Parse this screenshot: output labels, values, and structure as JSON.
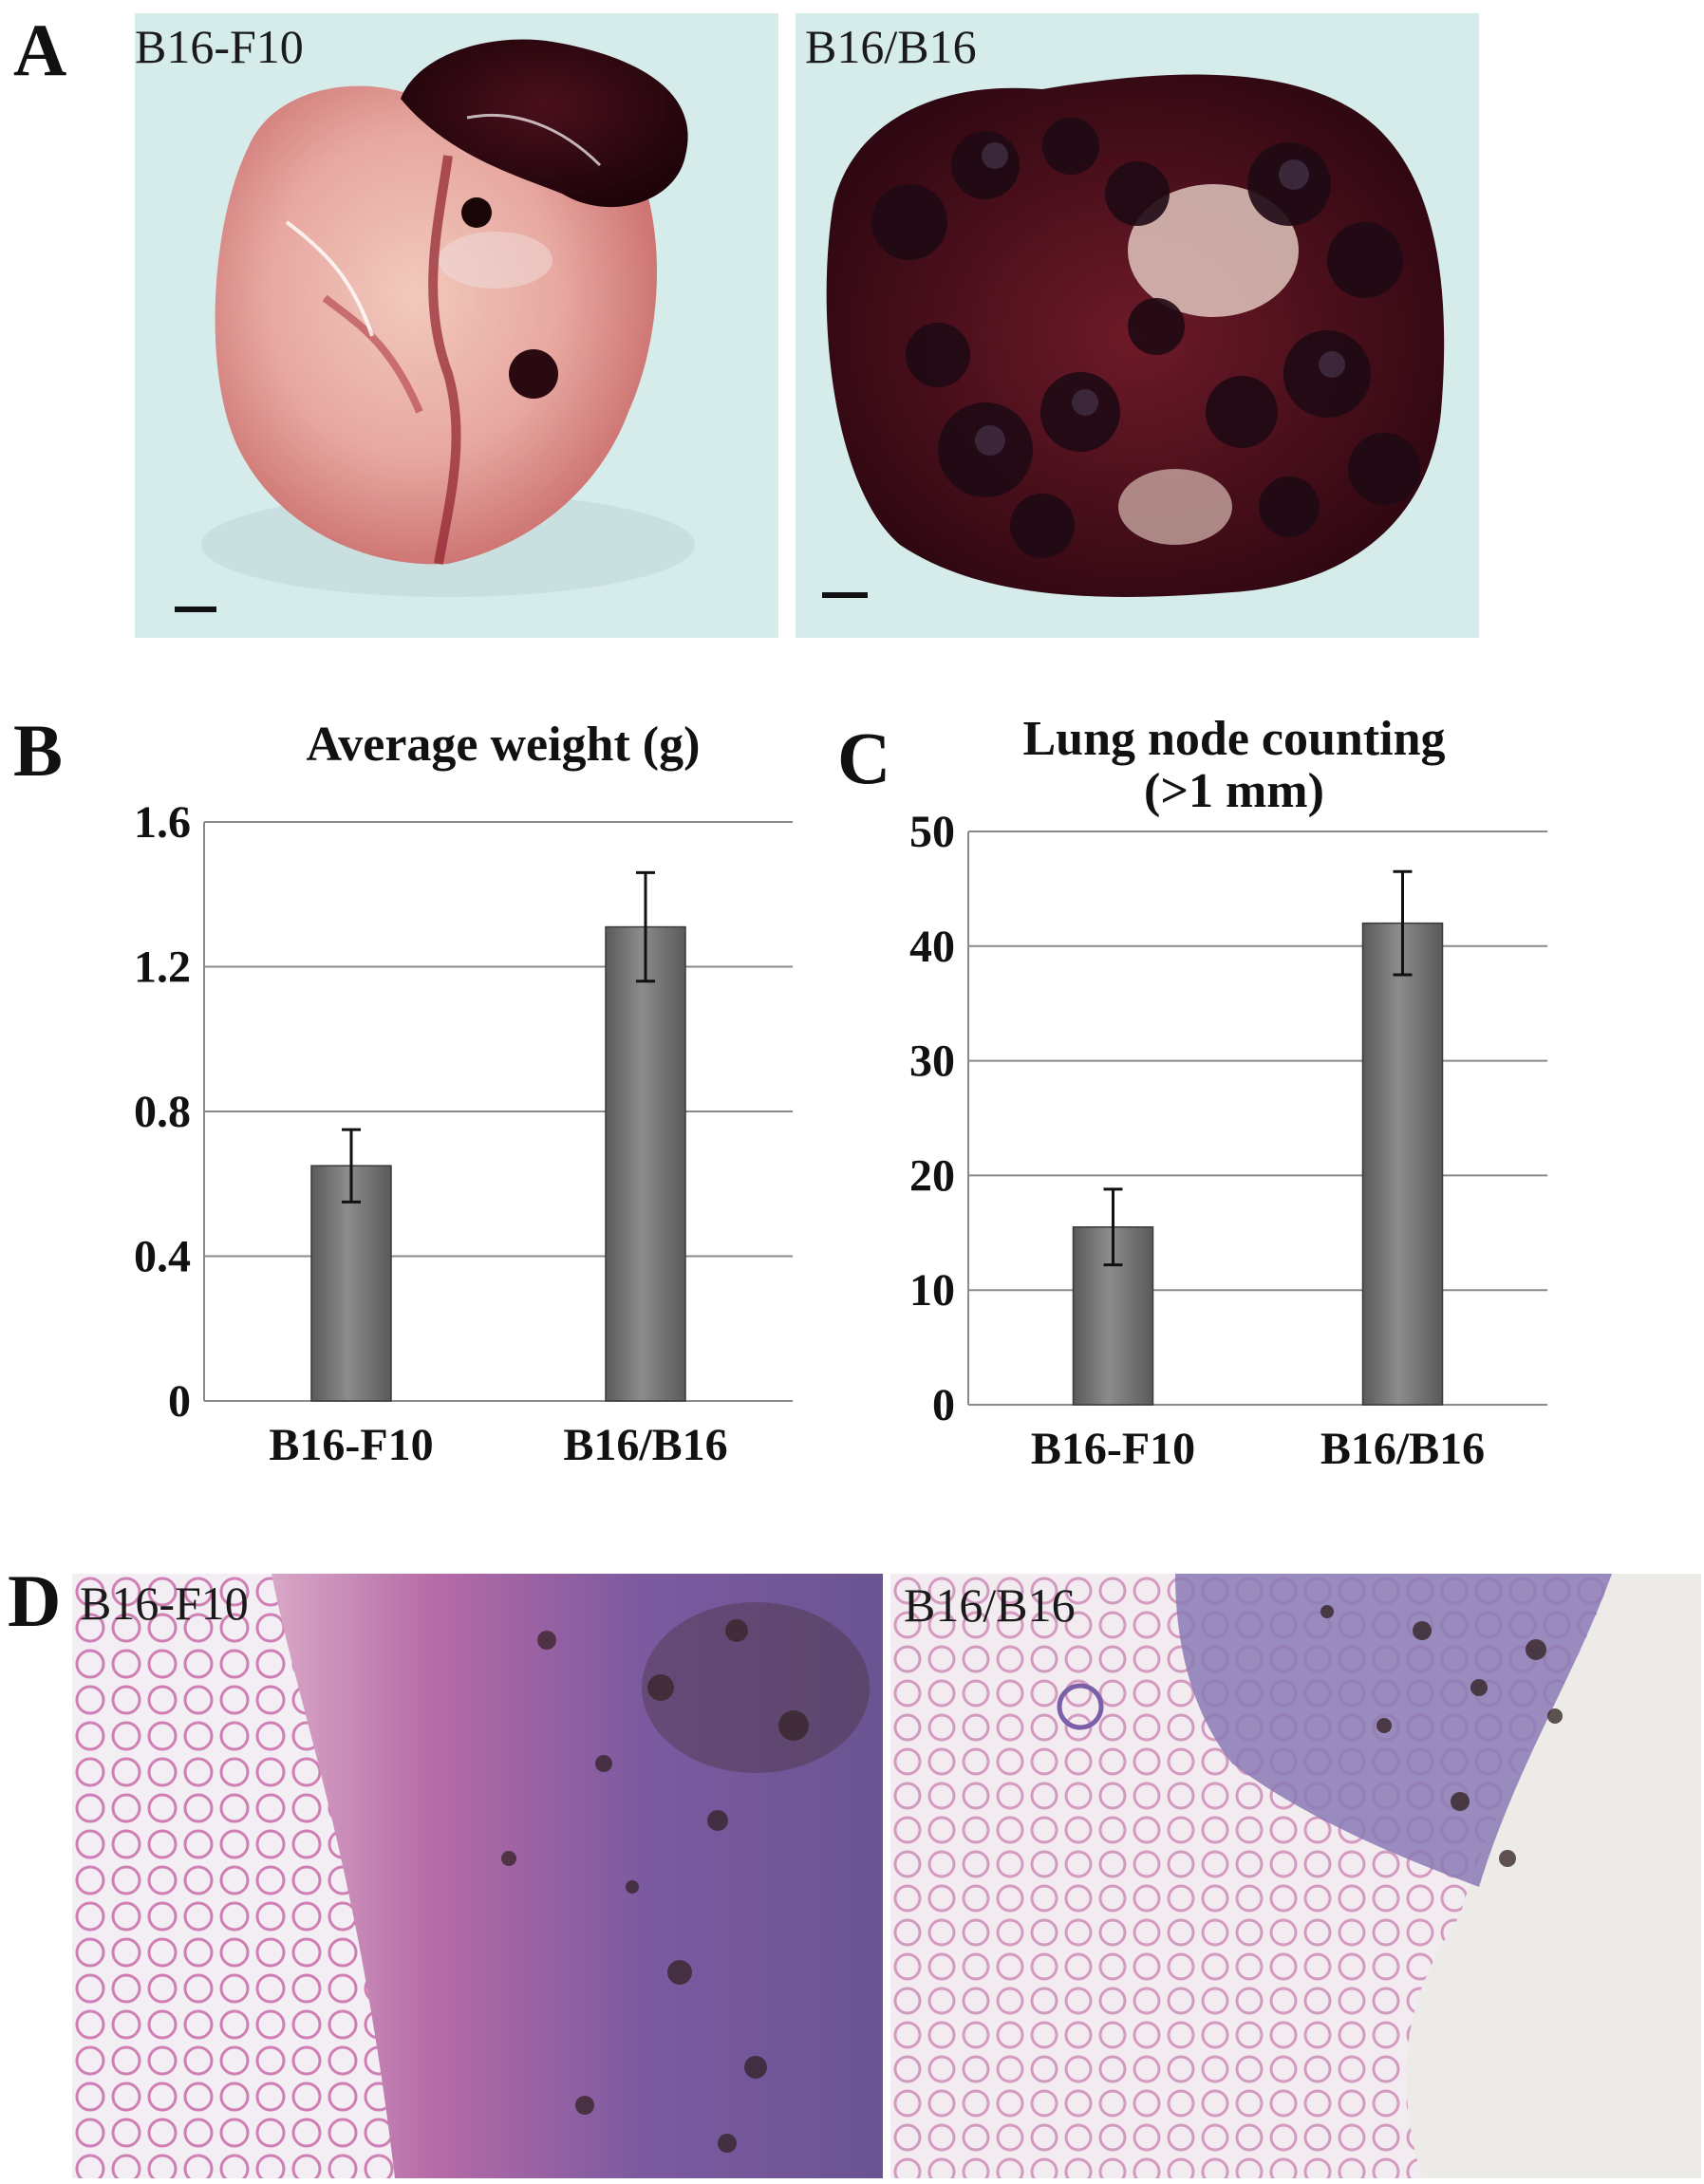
{
  "panels": {
    "A": {
      "letter": "A",
      "images": [
        {
          "label": "B16-F10",
          "kind": "lung-photo-low-metastasis"
        },
        {
          "label": "B16/B16",
          "kind": "lung-photo-high-metastasis"
        }
      ]
    },
    "B": {
      "letter": "B"
    },
    "C": {
      "letter": "C"
    },
    "D": {
      "letter": "D",
      "images": [
        {
          "label": "B16-F10",
          "kind": "histology-section"
        },
        {
          "label": "B16/B16",
          "kind": "histology-section"
        }
      ]
    }
  },
  "colors": {
    "bar": "#5a5a5a",
    "bar_highlight": "#8c8c8c",
    "grid": "#8a8a8a",
    "text": "#111111"
  },
  "chart_data": [
    {
      "type": "bar",
      "title": "Average weight (g)",
      "categories": [
        "B16-F10",
        "B16/B16"
      ],
      "values": [
        0.65,
        1.31
      ],
      "errors": [
        0.1,
        0.15
      ],
      "ylim": [
        0,
        1.6
      ],
      "yticks": [
        0,
        0.4,
        0.8,
        1.2,
        1.6
      ],
      "ytick_labels": [
        "0",
        "0.4",
        "0.8",
        "1.2",
        "1.6"
      ],
      "grid": true
    },
    {
      "type": "bar",
      "title": "Lung node counting (>1 mm)",
      "categories": [
        "B16-F10",
        "B16/B16"
      ],
      "values": [
        15.5,
        42
      ],
      "errors": [
        3.3,
        4.5
      ],
      "ylim": [
        0,
        50
      ],
      "yticks": [
        0,
        10,
        20,
        30,
        40,
        50
      ],
      "ytick_labels": [
        "0",
        "10",
        "20",
        "30",
        "40",
        "50"
      ],
      "grid": true
    }
  ]
}
